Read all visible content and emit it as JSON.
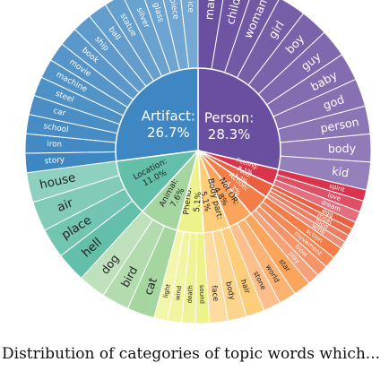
{
  "caption": "Distribution of categories of topic words which...",
  "chart_data": {
    "type": "sunburst",
    "inner": [
      {
        "name": "Person",
        "display": "Person:",
        "pct_label": "28.3%",
        "value": 28.3,
        "color": "#6a4fa0"
      },
      {
        "name": "Feeling",
        "display": "Feeling:",
        "pct_label": "3.1%",
        "value": 3.1,
        "color": "#d9344c"
      },
      {
        "name": "Food",
        "display": "Food:",
        "pct_label": "2.7%",
        "value": 2.7,
        "color": "#e8603f"
      },
      {
        "name": "Action",
        "display": "Action:",
        "pct_label": "4.3%",
        "value": 4.3,
        "color": "#f47c46"
      },
      {
        "name": "Not OR",
        "display": "Not OR:",
        "pct_label": "4.8%",
        "value": 4.8,
        "color": "#fba55c"
      },
      {
        "name": "Body part",
        "display": "Body part:",
        "pct_label": "5.1%",
        "value": 5.1,
        "color": "#fdcd7a"
      },
      {
        "name": "Pheno",
        "display": "Pheno:",
        "pct_label": "5.1%",
        "value": 5.1,
        "color": "#eef28a"
      },
      {
        "name": "Animal",
        "display": "Animal:",
        "pct_label": "7.6%",
        "value": 7.6,
        "color": "#a5d6a0"
      },
      {
        "name": "Location",
        "display": "Location:",
        "pct_label": "11.0%",
        "value": 11.0,
        "color": "#64bfa8"
      },
      {
        "name": "Artifact",
        "display": "Artifact:",
        "pct_label": "26.7%",
        "value": 26.7,
        "color": "#3f87c2"
      }
    ],
    "outer": [
      {
        "parent": "Person",
        "words": [
          "man",
          "child",
          "woman",
          "girl",
          "boy",
          "guy",
          "baby",
          "god",
          "person",
          "body",
          "kid"
        ]
      },
      {
        "parent": "Feeling",
        "words": [
          "spirit",
          "love",
          "dream"
        ]
      },
      {
        "parent": "Food",
        "words": [
          "egg",
          "meat",
          "food",
          "wine"
        ]
      },
      {
        "parent": "Action",
        "words": [
          "action",
          "movement",
          "blow",
          "play"
        ]
      },
      {
        "parent": "Not OR",
        "words": [
          "star",
          "world",
          "stone"
        ]
      },
      {
        "parent": "Body part",
        "words": [
          "hair",
          "body",
          "face"
        ]
      },
      {
        "parent": "Pheno",
        "words": [
          "sound",
          "death",
          "wind",
          "light"
        ]
      },
      {
        "parent": "Animal",
        "words": [
          "cat",
          "bird",
          "dog"
        ]
      },
      {
        "parent": "Location",
        "words": [
          "hell",
          "place",
          "air",
          "house"
        ]
      },
      {
        "parent": "Artifact",
        "words": [
          "story",
          "iron",
          "school",
          "car",
          "steel",
          "machine",
          "movie",
          "book",
          "ship",
          "ball",
          "statue",
          "silver",
          "glass",
          "piece",
          "ice"
        ]
      }
    ]
  }
}
